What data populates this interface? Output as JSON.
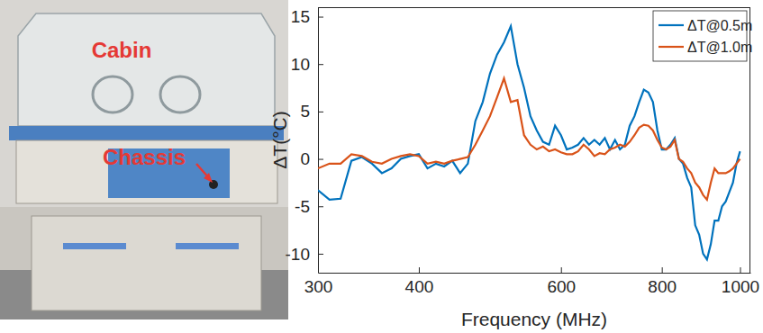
{
  "image_labels": [
    "Cabin",
    "Chassis"
  ],
  "chart_data": {
    "type": "line",
    "x_label": "Frequency (MHz)",
    "y_label": "ΔT(°C)",
    "log": "x",
    "grid": false,
    "legend": "upper right",
    "xlim": [
      300,
      1030
    ],
    "xticks": [
      300,
      400,
      600,
      800,
      1000
    ],
    "ylim": [
      -12,
      16
    ],
    "yticks": [
      -10,
      -5,
      0,
      5,
      10,
      15
    ],
    "x": [
      300,
      310,
      320,
      330,
      340,
      350,
      360,
      370,
      380,
      390,
      400,
      410,
      420,
      430,
      440,
      450,
      460,
      470,
      480,
      490,
      500,
      510,
      520,
      530,
      540,
      550,
      560,
      570,
      580,
      590,
      600,
      610,
      620,
      630,
      640,
      650,
      660,
      670,
      680,
      690,
      700,
      710,
      720,
      730,
      740,
      750,
      760,
      770,
      780,
      790,
      800,
      810,
      820,
      830,
      840,
      850,
      860,
      870,
      880,
      890,
      900,
      910,
      920,
      930,
      940,
      950,
      960,
      970,
      980,
      990,
      1000
    ],
    "series": [
      {
        "name": "ΔT@0.5m",
        "color": "#0072bd",
        "values": [
          -3.3,
          -4.3,
          -4.2,
          -0.2,
          0.2,
          -0.5,
          -1.5,
          -1.0,
          0.0,
          0.3,
          0.5,
          -1.0,
          -0.5,
          -0.8,
          -0.2,
          -1.5,
          -0.5,
          4.0,
          6.0,
          9.0,
          11.0,
          12.3,
          14.0,
          10.0,
          7.5,
          4.5,
          3.0,
          1.8,
          1.5,
          3.5,
          2.5,
          1.0,
          1.2,
          1.5,
          2.2,
          1.5,
          2.0,
          1.5,
          2.2,
          1.0,
          2.0,
          1.0,
          1.5,
          3.5,
          4.5,
          6.0,
          7.3,
          7.0,
          6.0,
          3.0,
          1.0,
          1.0,
          1.5,
          2.2,
          0.0,
          -0.5,
          -2.0,
          -3.0,
          -7.0,
          -8.0,
          -10.0,
          -10.6,
          -9.0,
          -6.5,
          -6.5,
          -5.0,
          -4.5,
          -3.5,
          -2.5,
          -0.5,
          0.8
        ]
      },
      {
        "name": "ΔT@1.0m",
        "color": "#d95319",
        "values": [
          -1.0,
          -0.5,
          -0.5,
          0.5,
          0.3,
          -0.3,
          -0.5,
          0.0,
          0.3,
          0.5,
          0.3,
          -0.5,
          -0.3,
          -0.5,
          -0.2,
          0.0,
          0.2,
          1.5,
          3.0,
          4.5,
          6.5,
          8.5,
          6.0,
          6.2,
          2.5,
          1.5,
          1.0,
          1.3,
          0.8,
          1.0,
          0.7,
          0.5,
          0.5,
          0.8,
          1.5,
          1.0,
          0.3,
          0.6,
          0.5,
          1.0,
          1.2,
          1.5,
          1.3,
          1.8,
          2.5,
          3.3,
          3.6,
          3.5,
          3.0,
          2.0,
          1.2,
          1.0,
          1.3,
          2.0,
          0.0,
          -0.3,
          -1.0,
          -1.5,
          -2.5,
          -3.0,
          -3.8,
          -4.3,
          -2.5,
          -1.0,
          -1.5,
          -1.5,
          -1.5,
          -1.3,
          -1.0,
          -0.5,
          0.0
        ]
      }
    ]
  }
}
